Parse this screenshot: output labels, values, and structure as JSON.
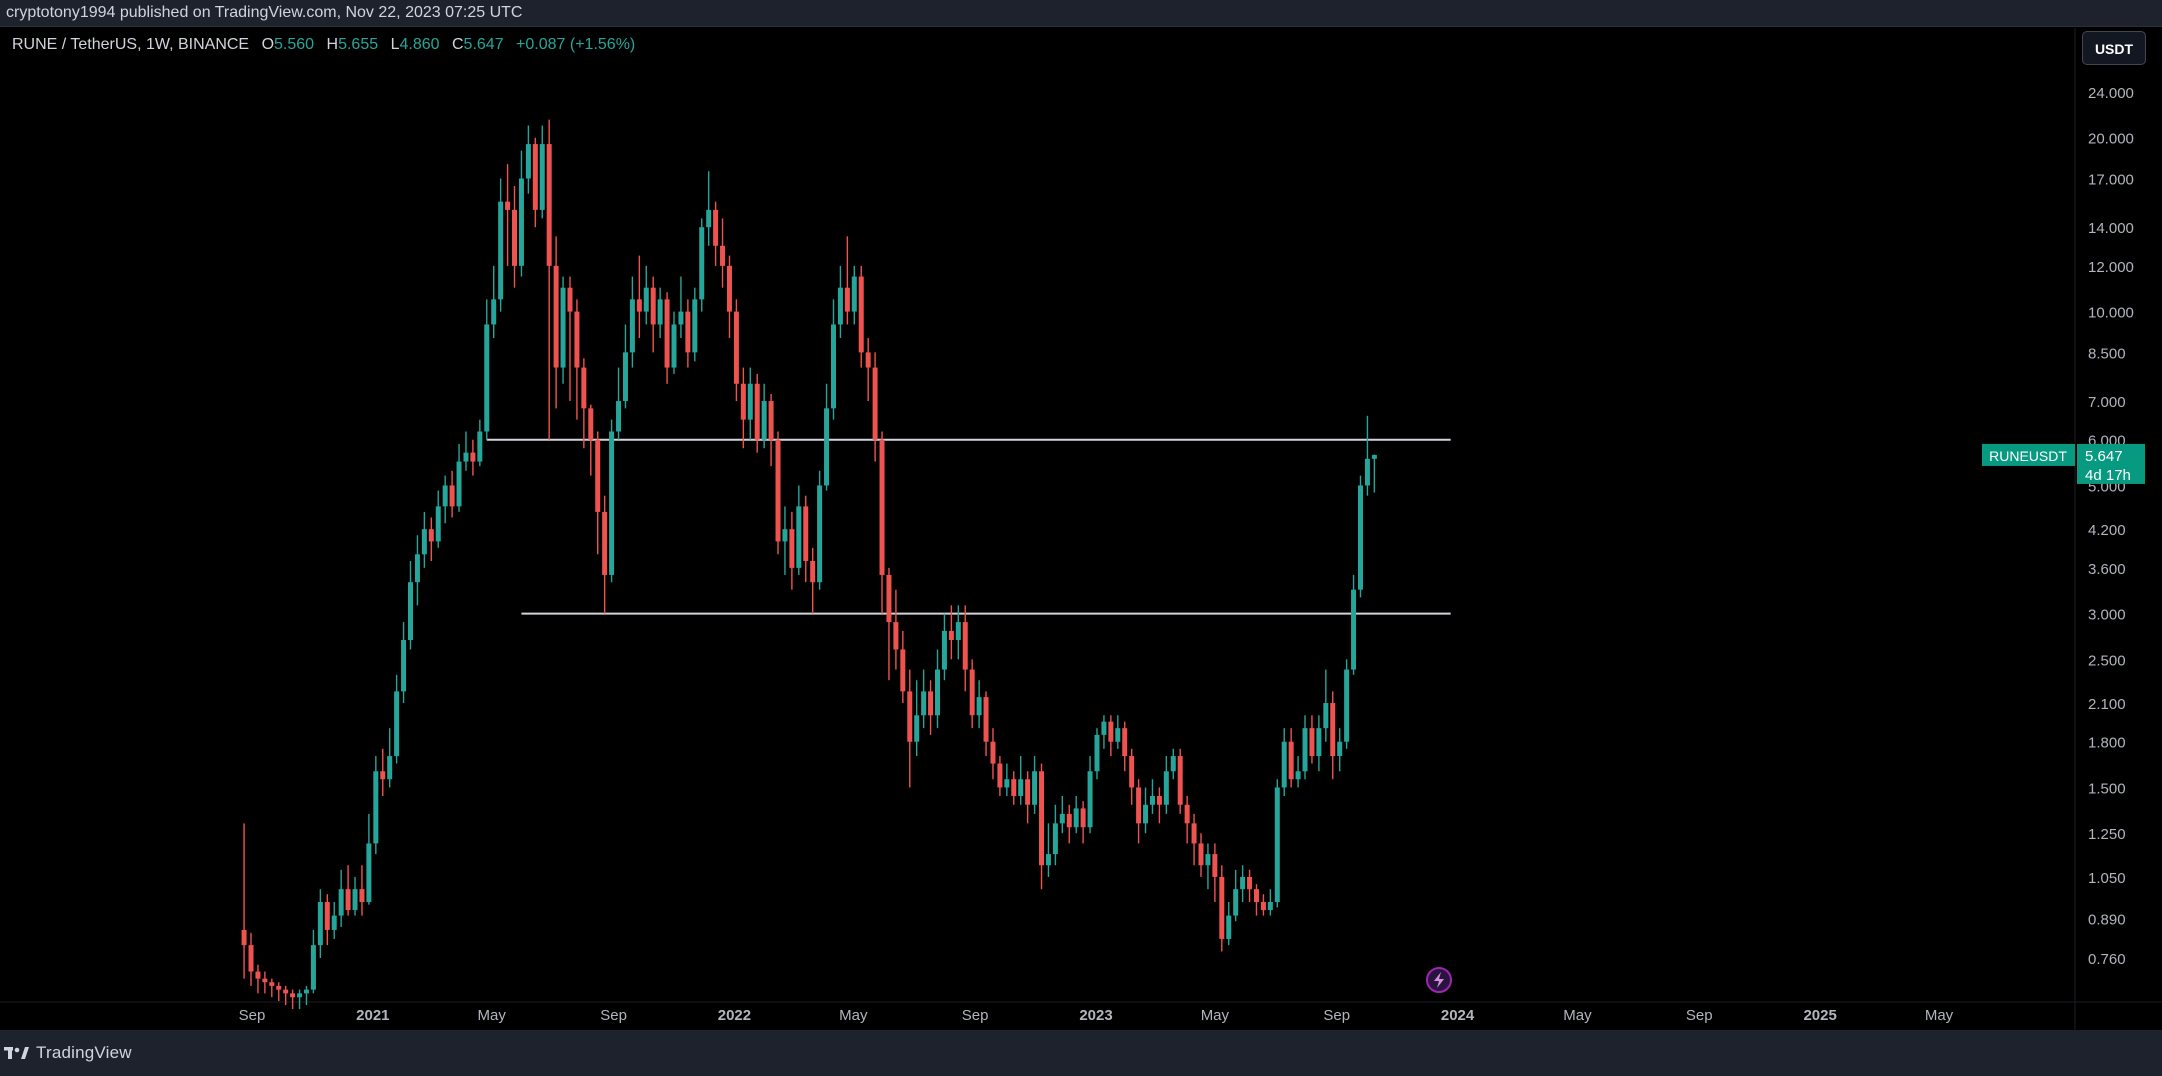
{
  "header": {
    "publisher_text": "cryptotony1994 published on TradingView.com, Nov 22, 2023 07:25 UTC"
  },
  "legend": {
    "symbol": "RUNE / TetherUS, 1W, BINANCE",
    "open_label": "O",
    "open": "5.560",
    "high_label": "H",
    "high": "5.655",
    "low_label": "L",
    "low": "4.860",
    "close_label": "C",
    "close": "5.647",
    "change": "+0.087 (+1.56%)"
  },
  "currency_button": "USDT",
  "price_label": {
    "name": "RUNEUSDT",
    "price": "5.647",
    "countdown": "4d 17h"
  },
  "footer": {
    "brand": "TradingView"
  },
  "colors": {
    "up": "#26a69a",
    "down": "#ef5350",
    "background": "#000000",
    "line": "#d1d4dc",
    "label_bg": "#089981"
  },
  "icons": {
    "logo": "tradingview-logo-icon",
    "event": "lightning-icon"
  },
  "chart_data": {
    "type": "candlestick",
    "scale": "log",
    "ylim": [
      0.68,
      27
    ],
    "y_ticks": [
      "24.000",
      "20.000",
      "17.000",
      "14.000",
      "12.000",
      "10.000",
      "8.500",
      "7.000",
      "6.000",
      "5.000",
      "4.200",
      "3.600",
      "3.000",
      "2.500",
      "2.100",
      "1.800",
      "1.500",
      "1.250",
      "1.050",
      "0.890",
      "0.760"
    ],
    "x_ticks": [
      "Sep",
      "2021",
      "May",
      "Sep",
      "2022",
      "May",
      "Sep",
      "2023",
      "May",
      "Sep",
      "2024",
      "May",
      "Sep",
      "2025",
      "May"
    ],
    "x_tick_dates": [
      "2020-09-01",
      "2021-01-01",
      "2021-05-01",
      "2021-09-01",
      "2022-01-01",
      "2022-05-01",
      "2022-09-01",
      "2023-01-01",
      "2023-05-01",
      "2023-09-01",
      "2024-01-01",
      "2024-05-01",
      "2024-09-01",
      "2025-01-01",
      "2025-05-01"
    ],
    "x_range": [
      "2020-08-16",
      "2025-07-08"
    ],
    "horizontal_lines": [
      {
        "value": 6.0,
        "from": "2021-04-26",
        "to": "2023-12-25"
      },
      {
        "value": 3.0,
        "from": "2021-05-31",
        "to": "2023-12-25"
      }
    ],
    "candles_start": "2020-08-24",
    "candles_interval_days": 7,
    "candles": [
      [
        0.85,
        0.8,
        1.3,
        0.7
      ],
      [
        0.8,
        0.72,
        0.84,
        0.68
      ],
      [
        0.72,
        0.7,
        0.74,
        0.66
      ],
      [
        0.7,
        0.69,
        0.72,
        0.66
      ],
      [
        0.69,
        0.68,
        0.7,
        0.65
      ],
      [
        0.68,
        0.67,
        0.69,
        0.64
      ],
      [
        0.67,
        0.66,
        0.68,
        0.63
      ],
      [
        0.66,
        0.65,
        0.67,
        0.62
      ],
      [
        0.65,
        0.66,
        0.67,
        0.62
      ],
      [
        0.66,
        0.67,
        0.68,
        0.63
      ],
      [
        0.67,
        0.8,
        0.85,
        0.66
      ],
      [
        0.8,
        0.95,
        1.0,
        0.76
      ],
      [
        0.95,
        0.85,
        0.98,
        0.8
      ],
      [
        0.85,
        0.9,
        0.95,
        0.82
      ],
      [
        0.9,
        1.0,
        1.08,
        0.86
      ],
      [
        1.0,
        0.92,
        1.1,
        0.9
      ],
      [
        0.92,
        1.0,
        1.05,
        0.9
      ],
      [
        1.0,
        0.95,
        1.1,
        0.9
      ],
      [
        0.95,
        1.2,
        1.35,
        0.94
      ],
      [
        1.2,
        1.6,
        1.7,
        1.15
      ],
      [
        1.6,
        1.55,
        1.75,
        1.45
      ],
      [
        1.55,
        1.7,
        1.9,
        1.5
      ],
      [
        1.7,
        2.2,
        2.35,
        1.65
      ],
      [
        2.2,
        2.7,
        2.9,
        2.1
      ],
      [
        2.7,
        3.4,
        3.7,
        2.6
      ],
      [
        3.4,
        3.8,
        4.1,
        3.1
      ],
      [
        3.8,
        4.2,
        4.5,
        3.6
      ],
      [
        4.2,
        4.0,
        4.4,
        3.7
      ],
      [
        4.0,
        4.6,
        4.9,
        3.9
      ],
      [
        4.6,
        5.0,
        5.2,
        4.3
      ],
      [
        5.0,
        4.6,
        5.3,
        4.4
      ],
      [
        4.6,
        5.5,
        5.9,
        4.5
      ],
      [
        5.5,
        5.7,
        6.2,
        5.3
      ],
      [
        5.7,
        5.5,
        6.0,
        5.2
      ],
      [
        5.5,
        6.2,
        6.5,
        5.4
      ],
      [
        6.2,
        9.5,
        10.5,
        6.0
      ],
      [
        9.5,
        10.5,
        12.0,
        9.0
      ],
      [
        10.5,
        15.5,
        17.0,
        10.0
      ],
      [
        15.5,
        15.0,
        18.0,
        12.0
      ],
      [
        15.0,
        12.0,
        16.5,
        11.0
      ],
      [
        12.0,
        17.0,
        19.0,
        11.5
      ],
      [
        17.0,
        19.5,
        21.0,
        16.0
      ],
      [
        19.5,
        15.0,
        20.0,
        14.0
      ],
      [
        15.0,
        19.5,
        21.0,
        14.5
      ],
      [
        19.5,
        12.0,
        21.5,
        6.0
      ],
      [
        12.0,
        8.0,
        13.5,
        6.8
      ],
      [
        8.0,
        11.0,
        11.5,
        7.5
      ],
      [
        11.0,
        10.0,
        11.5,
        7.0
      ],
      [
        10.0,
        8.0,
        10.5,
        6.5
      ],
      [
        8.0,
        6.8,
        8.3,
        5.8
      ],
      [
        6.8,
        6.0,
        6.9,
        5.2
      ],
      [
        6.0,
        4.5,
        6.2,
        3.8
      ],
      [
        4.5,
        3.5,
        4.8,
        3.0
      ],
      [
        3.5,
        6.2,
        6.5,
        3.4
      ],
      [
        6.2,
        7.0,
        8.0,
        6.0
      ],
      [
        7.0,
        8.5,
        9.5,
        6.8
      ],
      [
        8.5,
        10.5,
        11.5,
        8.0
      ],
      [
        10.5,
        10.0,
        12.5,
        9.0
      ],
      [
        10.0,
        11.0,
        12.0,
        9.5
      ],
      [
        11.0,
        9.5,
        11.5,
        8.5
      ],
      [
        9.5,
        10.5,
        11.0,
        9.0
      ],
      [
        10.5,
        8.0,
        10.8,
        7.5
      ],
      [
        8.0,
        9.5,
        10.0,
        7.8
      ],
      [
        9.5,
        10.0,
        11.5,
        9.0
      ],
      [
        10.0,
        8.5,
        10.5,
        8.0
      ],
      [
        8.5,
        10.5,
        11.0,
        8.2
      ],
      [
        10.5,
        14.0,
        14.5,
        10.0
      ],
      [
        14.0,
        15.0,
        17.5,
        13.0
      ],
      [
        15.0,
        13.0,
        15.5,
        12.0
      ],
      [
        13.0,
        12.0,
        14.5,
        11.0
      ],
      [
        12.0,
        10.0,
        12.5,
        9.0
      ],
      [
        10.0,
        7.5,
        10.5,
        7.0
      ],
      [
        7.5,
        6.5,
        8.0,
        5.8
      ],
      [
        6.5,
        7.5,
        8.0,
        6.0
      ],
      [
        7.5,
        6.0,
        7.8,
        5.7
      ],
      [
        6.0,
        7.0,
        7.5,
        5.8
      ],
      [
        7.0,
        6.0,
        7.2,
        5.4
      ],
      [
        6.0,
        4.0,
        6.2,
        3.8
      ],
      [
        4.0,
        4.2,
        4.6,
        3.5
      ],
      [
        4.2,
        3.6,
        4.5,
        3.3
      ],
      [
        3.6,
        4.6,
        5.0,
        3.5
      ],
      [
        4.6,
        3.7,
        4.8,
        3.4
      ],
      [
        3.7,
        3.4,
        3.9,
        3.0
      ],
      [
        3.4,
        5.0,
        5.3,
        3.3
      ],
      [
        5.0,
        6.8,
        7.5,
        4.9
      ],
      [
        6.8,
        9.5,
        10.5,
        6.5
      ],
      [
        9.5,
        11.0,
        12.0,
        9.0
      ],
      [
        11.0,
        10.0,
        13.5,
        9.5
      ],
      [
        10.0,
        11.5,
        12.0,
        9.5
      ],
      [
        11.5,
        8.5,
        12.0,
        8.0
      ],
      [
        8.5,
        8.0,
        9.0,
        7.0
      ],
      [
        8.0,
        6.0,
        8.5,
        5.5
      ],
      [
        6.0,
        3.5,
        6.2,
        3.0
      ],
      [
        3.5,
        2.9,
        3.6,
        2.3
      ],
      [
        2.9,
        2.6,
        3.3,
        2.4
      ],
      [
        2.6,
        2.2,
        2.8,
        2.1
      ],
      [
        2.2,
        1.8,
        2.4,
        1.5
      ],
      [
        1.8,
        2.0,
        2.3,
        1.7
      ],
      [
        2.0,
        2.2,
        2.4,
        1.9
      ],
      [
        2.2,
        2.0,
        2.3,
        1.85
      ],
      [
        2.0,
        2.4,
        2.6,
        1.9
      ],
      [
        2.4,
        2.8,
        3.0,
        2.3
      ],
      [
        2.8,
        2.7,
        3.1,
        2.5
      ],
      [
        2.7,
        2.9,
        3.1,
        2.5
      ],
      [
        2.9,
        2.4,
        3.1,
        2.2
      ],
      [
        2.4,
        2.0,
        2.5,
        1.9
      ],
      [
        2.0,
        2.15,
        2.3,
        1.9
      ],
      [
        2.15,
        1.8,
        2.2,
        1.7
      ],
      [
        1.8,
        1.65,
        1.9,
        1.55
      ],
      [
        1.65,
        1.5,
        1.7,
        1.45
      ],
      [
        1.5,
        1.55,
        1.65,
        1.45
      ],
      [
        1.55,
        1.45,
        1.6,
        1.4
      ],
      [
        1.45,
        1.55,
        1.7,
        1.4
      ],
      [
        1.55,
        1.4,
        1.6,
        1.3
      ],
      [
        1.4,
        1.6,
        1.7,
        1.35
      ],
      [
        1.6,
        1.1,
        1.65,
        1.0
      ],
      [
        1.1,
        1.15,
        1.3,
        1.05
      ],
      [
        1.15,
        1.3,
        1.4,
        1.1
      ],
      [
        1.3,
        1.35,
        1.45,
        1.25
      ],
      [
        1.35,
        1.28,
        1.4,
        1.2
      ],
      [
        1.28,
        1.38,
        1.45,
        1.25
      ],
      [
        1.38,
        1.28,
        1.42,
        1.2
      ],
      [
        1.28,
        1.6,
        1.7,
        1.25
      ],
      [
        1.6,
        1.85,
        1.9,
        1.55
      ],
      [
        1.85,
        1.95,
        2.0,
        1.75
      ],
      [
        1.95,
        1.8,
        2.0,
        1.7
      ],
      [
        1.8,
        1.9,
        2.0,
        1.75
      ],
      [
        1.9,
        1.7,
        1.95,
        1.6
      ],
      [
        1.7,
        1.5,
        1.75,
        1.4
      ],
      [
        1.5,
        1.3,
        1.55,
        1.2
      ],
      [
        1.3,
        1.4,
        1.5,
        1.25
      ],
      [
        1.4,
        1.45,
        1.55,
        1.35
      ],
      [
        1.45,
        1.4,
        1.5,
        1.3
      ],
      [
        1.4,
        1.6,
        1.7,
        1.35
      ],
      [
        1.6,
        1.7,
        1.75,
        1.55
      ],
      [
        1.7,
        1.4,
        1.75,
        1.35
      ],
      [
        1.4,
        1.3,
        1.45,
        1.2
      ],
      [
        1.3,
        1.2,
        1.35,
        1.1
      ],
      [
        1.2,
        1.1,
        1.25,
        1.05
      ],
      [
        1.1,
        1.15,
        1.2,
        1.0
      ],
      [
        1.15,
        1.05,
        1.2,
        0.95
      ],
      [
        1.05,
        0.82,
        1.1,
        0.78
      ],
      [
        0.82,
        0.9,
        0.95,
        0.8
      ],
      [
        0.9,
        1.0,
        1.08,
        0.88
      ],
      [
        1.0,
        1.05,
        1.1,
        0.95
      ],
      [
        1.05,
        1.0,
        1.08,
        0.95
      ],
      [
        1.0,
        0.95,
        1.02,
        0.9
      ],
      [
        0.95,
        0.92,
        0.98,
        0.9
      ],
      [
        0.92,
        0.95,
        1.0,
        0.9
      ],
      [
        0.95,
        1.5,
        1.55,
        0.93
      ],
      [
        1.5,
        1.8,
        1.9,
        1.45
      ],
      [
        1.8,
        1.55,
        1.9,
        1.5
      ],
      [
        1.55,
        1.6,
        1.7,
        1.5
      ],
      [
        1.6,
        1.9,
        2.0,
        1.55
      ],
      [
        1.9,
        1.7,
        2.0,
        1.65
      ],
      [
        1.7,
        1.9,
        2.0,
        1.6
      ],
      [
        1.9,
        2.1,
        2.4,
        1.8
      ],
      [
        2.1,
        1.7,
        2.2,
        1.55
      ],
      [
        1.7,
        1.8,
        1.9,
        1.6
      ],
      [
        1.8,
        2.4,
        2.5,
        1.75
      ],
      [
        2.4,
        3.3,
        3.5,
        2.35
      ],
      [
        3.3,
        5.0,
        5.2,
        3.2
      ],
      [
        5.0,
        5.56,
        6.6,
        4.8
      ],
      [
        5.56,
        5.647,
        5.655,
        4.86
      ]
    ]
  }
}
